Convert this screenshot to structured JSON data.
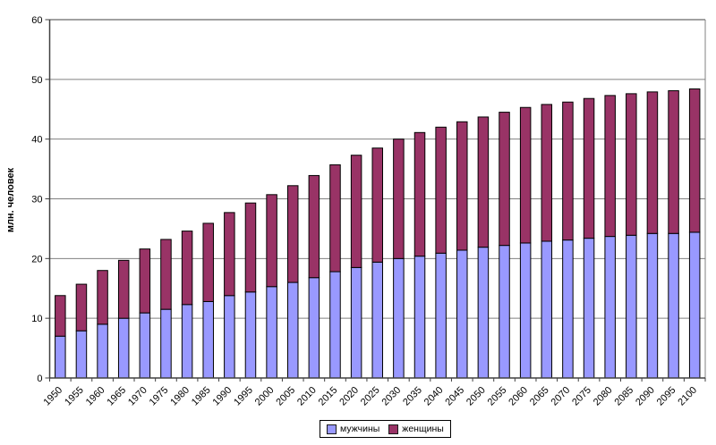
{
  "chart_data": {
    "type": "bar",
    "stacked": true,
    "title": "",
    "xlabel": "",
    "ylabel": "млн. человек",
    "ylim": [
      0,
      60
    ],
    "ytick_step": 10,
    "grid": true,
    "legend_position": "bottom",
    "categories": [
      "1950",
      "1955",
      "1960",
      "1965",
      "1970",
      "1975",
      "1980",
      "1985",
      "1990",
      "1995",
      "2000",
      "2005",
      "2010",
      "2015",
      "2020",
      "2025",
      "2030",
      "2035",
      "2040",
      "2045",
      "2050",
      "2055",
      "2060",
      "2065",
      "2070",
      "2075",
      "2080",
      "2085",
      "2090",
      "2095",
      "2100"
    ],
    "series": [
      {
        "name": "мужчины",
        "color": "#9999FF",
        "values": [
          7.0,
          7.9,
          9.0,
          10.0,
          10.9,
          11.5,
          12.3,
          12.8,
          13.8,
          14.4,
          15.3,
          16.0,
          16.8,
          17.8,
          18.5,
          19.4,
          20.0,
          20.4,
          20.9,
          21.4,
          21.9,
          22.2,
          22.6,
          22.9,
          23.1,
          23.4,
          23.7,
          23.9,
          24.2,
          24.2,
          24.4
        ]
      },
      {
        "name": "женщины",
        "color": "#993366",
        "values": [
          6.8,
          7.8,
          9.0,
          9.7,
          10.7,
          11.7,
          12.3,
          13.1,
          13.9,
          14.9,
          15.4,
          16.2,
          17.1,
          17.9,
          18.8,
          19.1,
          20.0,
          20.7,
          21.1,
          21.5,
          21.8,
          22.3,
          22.7,
          22.9,
          23.1,
          23.4,
          23.6,
          23.7,
          23.7,
          23.9,
          24.0
        ]
      }
    ],
    "colors": {
      "gridline": "#808080",
      "axis": "#404040",
      "bar_border": "#000000",
      "text": "#000000",
      "background": "#FFFFFF"
    }
  }
}
